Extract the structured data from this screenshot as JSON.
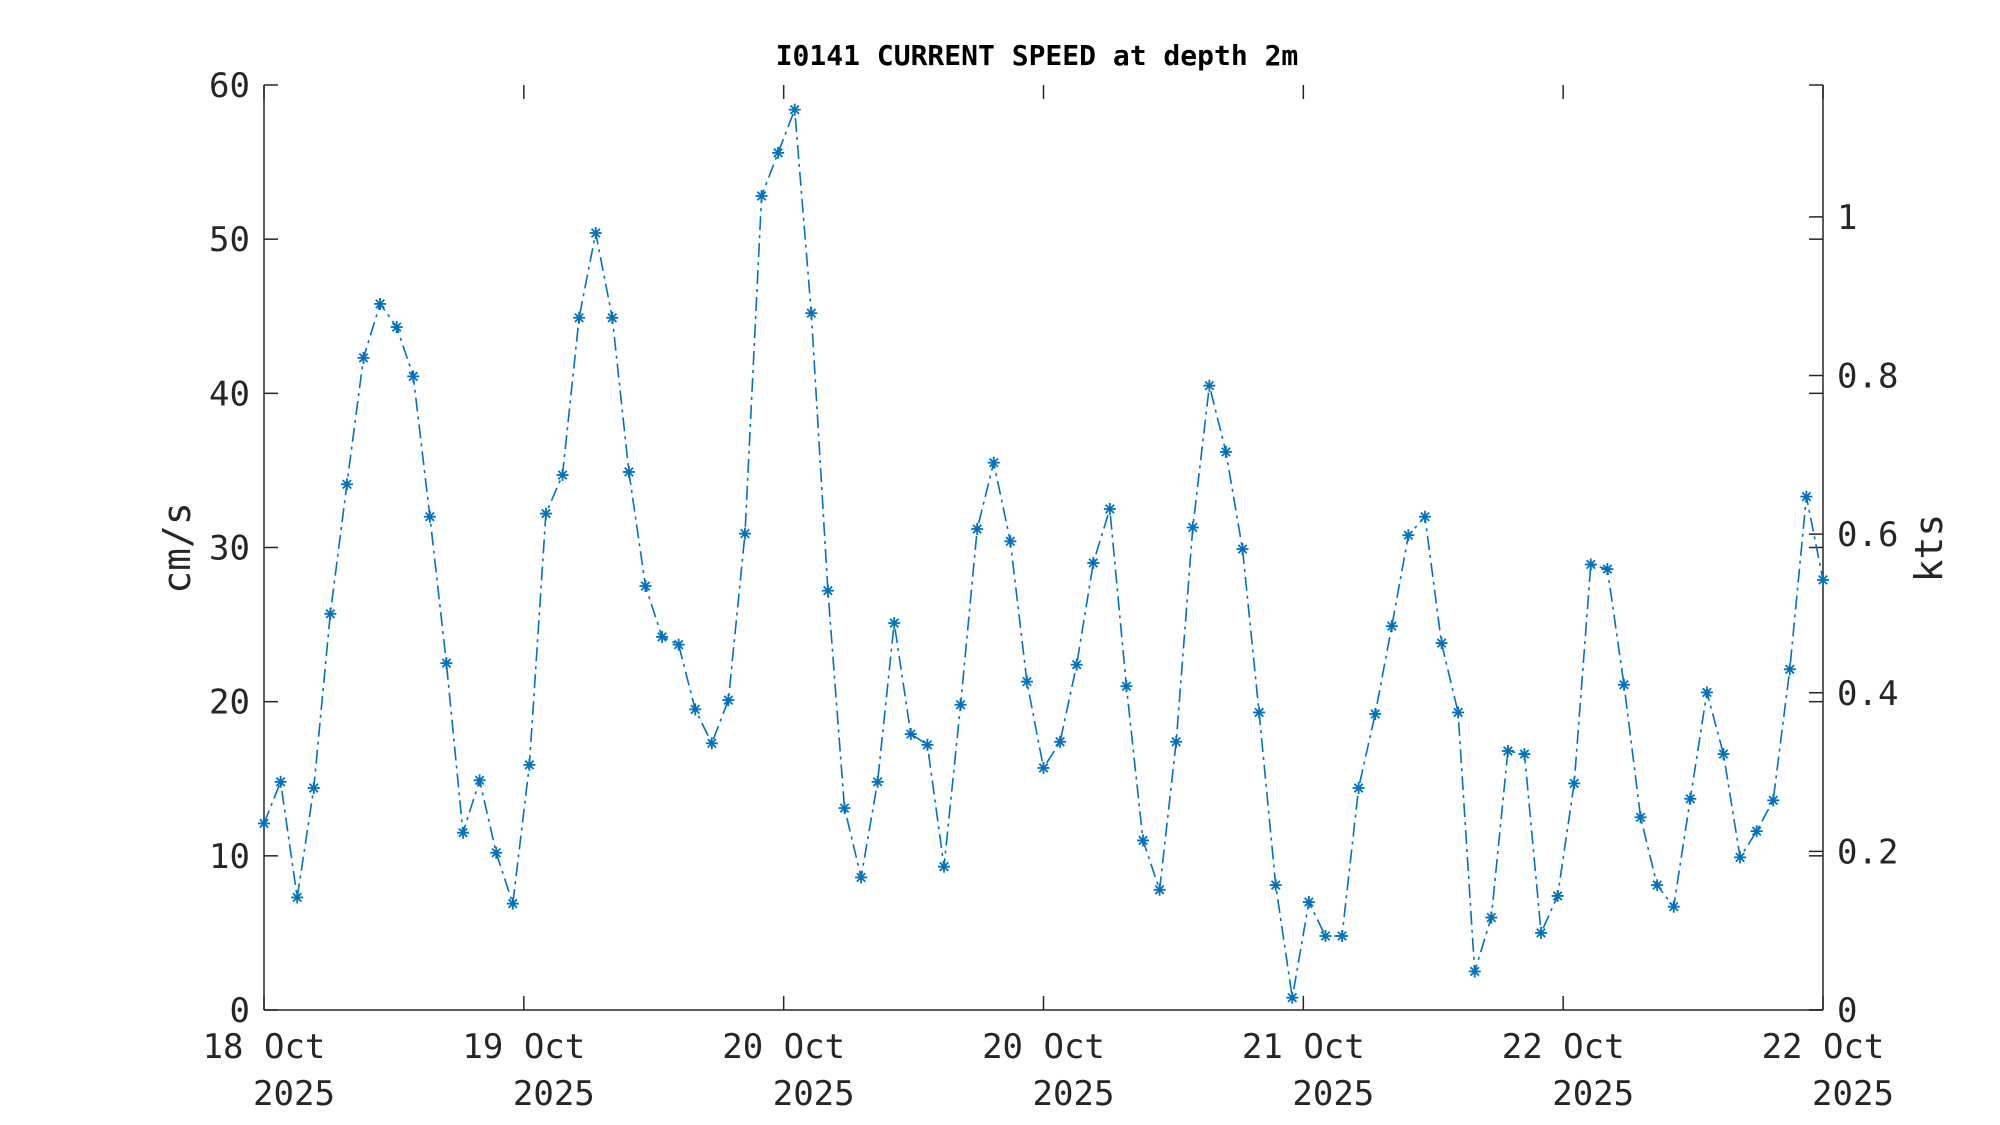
{
  "chart_data": {
    "type": "line",
    "title": "I0141 CURRENT SPEED at depth 2m",
    "ylabel": "cm/s",
    "ylabel_right": "kts",
    "ylim": [
      0,
      60
    ],
    "ylim_right_kts": [
      0,
      1.1663
    ],
    "y_ticks": [
      "0",
      "10",
      "20",
      "30",
      "40",
      "50",
      "60"
    ],
    "y_right_ticks": [
      "0",
      "0.2",
      "0.4",
      "0.6",
      "0.8",
      "1"
    ],
    "x_ticks": [
      {
        "line1": "18 Oct",
        "line2": "2025"
      },
      {
        "line1": "19 Oct",
        "line2": "2025"
      },
      {
        "line1": "20 Oct",
        "line2": "2025"
      },
      {
        "line1": "20 Oct",
        "line2": "2025"
      },
      {
        "line1": "21 Oct",
        "line2": "2025"
      },
      {
        "line1": "22 Oct",
        "line2": "2025"
      },
      {
        "line1": "22 Oct",
        "line2": "2025"
      }
    ],
    "marker": "asterisk",
    "line_style": "dash-dot",
    "color": "#0072BD",
    "series": [
      {
        "values": [
          12.1,
          14.8,
          7.3,
          14.4,
          25.7,
          34.1,
          42.3,
          45.8,
          44.3,
          41.1,
          32.0,
          22.5,
          11.5,
          14.9,
          10.2,
          6.9,
          15.9,
          32.2,
          34.7,
          44.9,
          50.4,
          44.9,
          34.9,
          27.5,
          24.2,
          23.7,
          19.5,
          17.3,
          20.1,
          30.9,
          52.8,
          55.6,
          58.4,
          45.2,
          27.2,
          13.1,
          8.6,
          14.8,
          25.1,
          17.9,
          17.2,
          9.3,
          19.8,
          31.2,
          35.5,
          30.4,
          21.3,
          15.7,
          17.4,
          22.4,
          29.0,
          32.5,
          21.0,
          11.0,
          7.8,
          17.4,
          31.3,
          40.5,
          36.2,
          29.9,
          19.3,
          8.1,
          0.8,
          7.0,
          4.8,
          4.8,
          14.4,
          19.2,
          24.9,
          30.8,
          32.0,
          23.8,
          19.3,
          2.5,
          6.0,
          16.8,
          16.6,
          5.0,
          7.4,
          14.7,
          28.9,
          28.6,
          21.1,
          12.5,
          8.1,
          6.7,
          13.7,
          20.6,
          16.6,
          9.9,
          11.6,
          13.6,
          22.1,
          33.3,
          27.9
        ]
      }
    ]
  }
}
